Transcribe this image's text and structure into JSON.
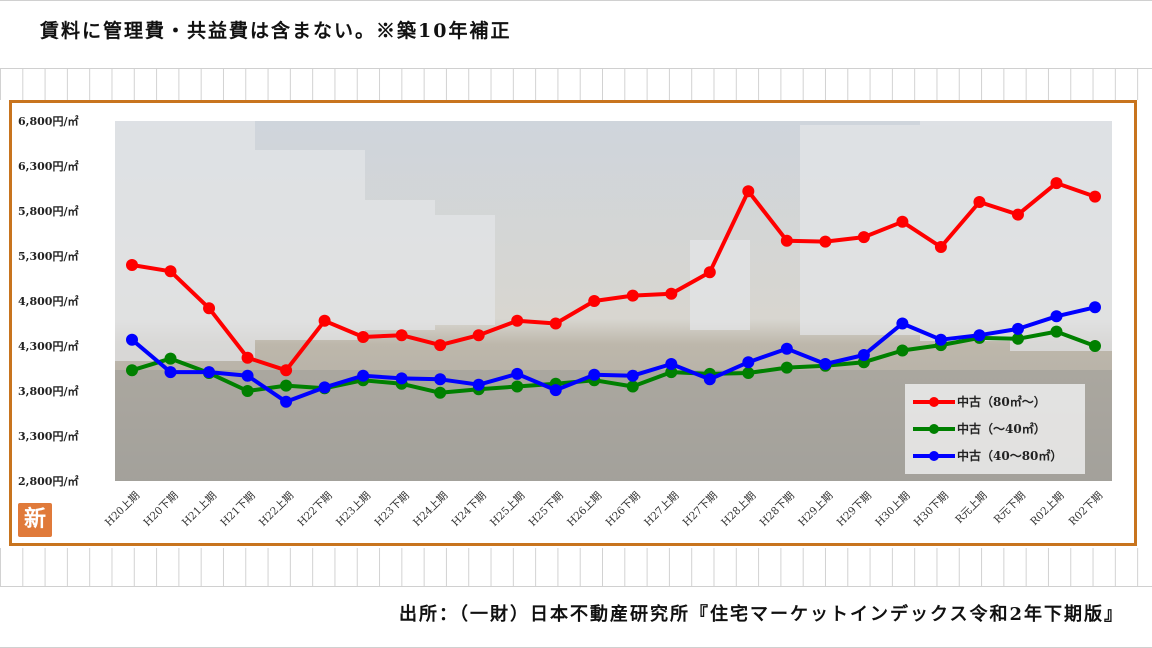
{
  "header": {
    "text": "賃料に管理費・共益費は含まない。※築10年補正"
  },
  "footer": {
    "text": "出所：（一財）日本不動産研究所『住宅マーケットインデックス令和2年下期版』"
  },
  "badge": {
    "text": "新",
    "color": "#e07a3a"
  },
  "chart_data": {
    "type": "line",
    "title": "",
    "xlabel": "",
    "ylabel": "",
    "ylim": [
      2800,
      6800
    ],
    "yticks": [
      2800,
      3300,
      3800,
      4300,
      4800,
      5300,
      5800,
      6300,
      6800
    ],
    "ytick_labels": [
      "2,800円/㎡",
      "3,300円/㎡",
      "3,800円/㎡",
      "4,300円/㎡",
      "4,800円/㎡",
      "5,300円/㎡",
      "5,800円/㎡",
      "6,300円/㎡",
      "6,800円/㎡"
    ],
    "categories": [
      "H20上期",
      "H20下期",
      "H21上期",
      "H21下期",
      "H22上期",
      "H22下期",
      "H23上期",
      "H23下期",
      "H24上期",
      "H24下期",
      "H25上期",
      "H25下期",
      "H26上期",
      "H26下期",
      "H27上期",
      "H27下期",
      "H28上期",
      "H28下期",
      "H29上期",
      "H29下期",
      "H30上期",
      "H30下期",
      "R元上期",
      "R元下期",
      "R02上期",
      "R02下期"
    ],
    "legend_position": "bottom-right",
    "series": [
      {
        "name": "中古（80㎡～）",
        "color": "#ff0000",
        "values": [
          5200,
          5130,
          4720,
          4170,
          4030,
          4580,
          4400,
          4420,
          4310,
          4420,
          4580,
          4550,
          4800,
          4860,
          4880,
          5120,
          6020,
          5470,
          5460,
          5510,
          5680,
          5400,
          5900,
          5760,
          6110,
          5960
        ]
      },
      {
        "name": "中古（～40㎡）",
        "color": "#008000",
        "values": [
          4030,
          4160,
          4000,
          3800,
          3860,
          3830,
          3920,
          3880,
          3780,
          3820,
          3850,
          3880,
          3920,
          3850,
          4010,
          3990,
          4000,
          4060,
          4080,
          4120,
          4250,
          4310,
          4390,
          4380,
          4460,
          4300
        ]
      },
      {
        "name": "中古（40～80㎡）",
        "color": "#0000ff",
        "values": [
          4370,
          4010,
          4010,
          3970,
          3680,
          3840,
          3970,
          3940,
          3930,
          3870,
          3990,
          3810,
          3980,
          3970,
          4100,
          3930,
          4120,
          4270,
          4100,
          4200,
          4550,
          4370,
          4420,
          4490,
          4630,
          4730
        ]
      }
    ]
  }
}
